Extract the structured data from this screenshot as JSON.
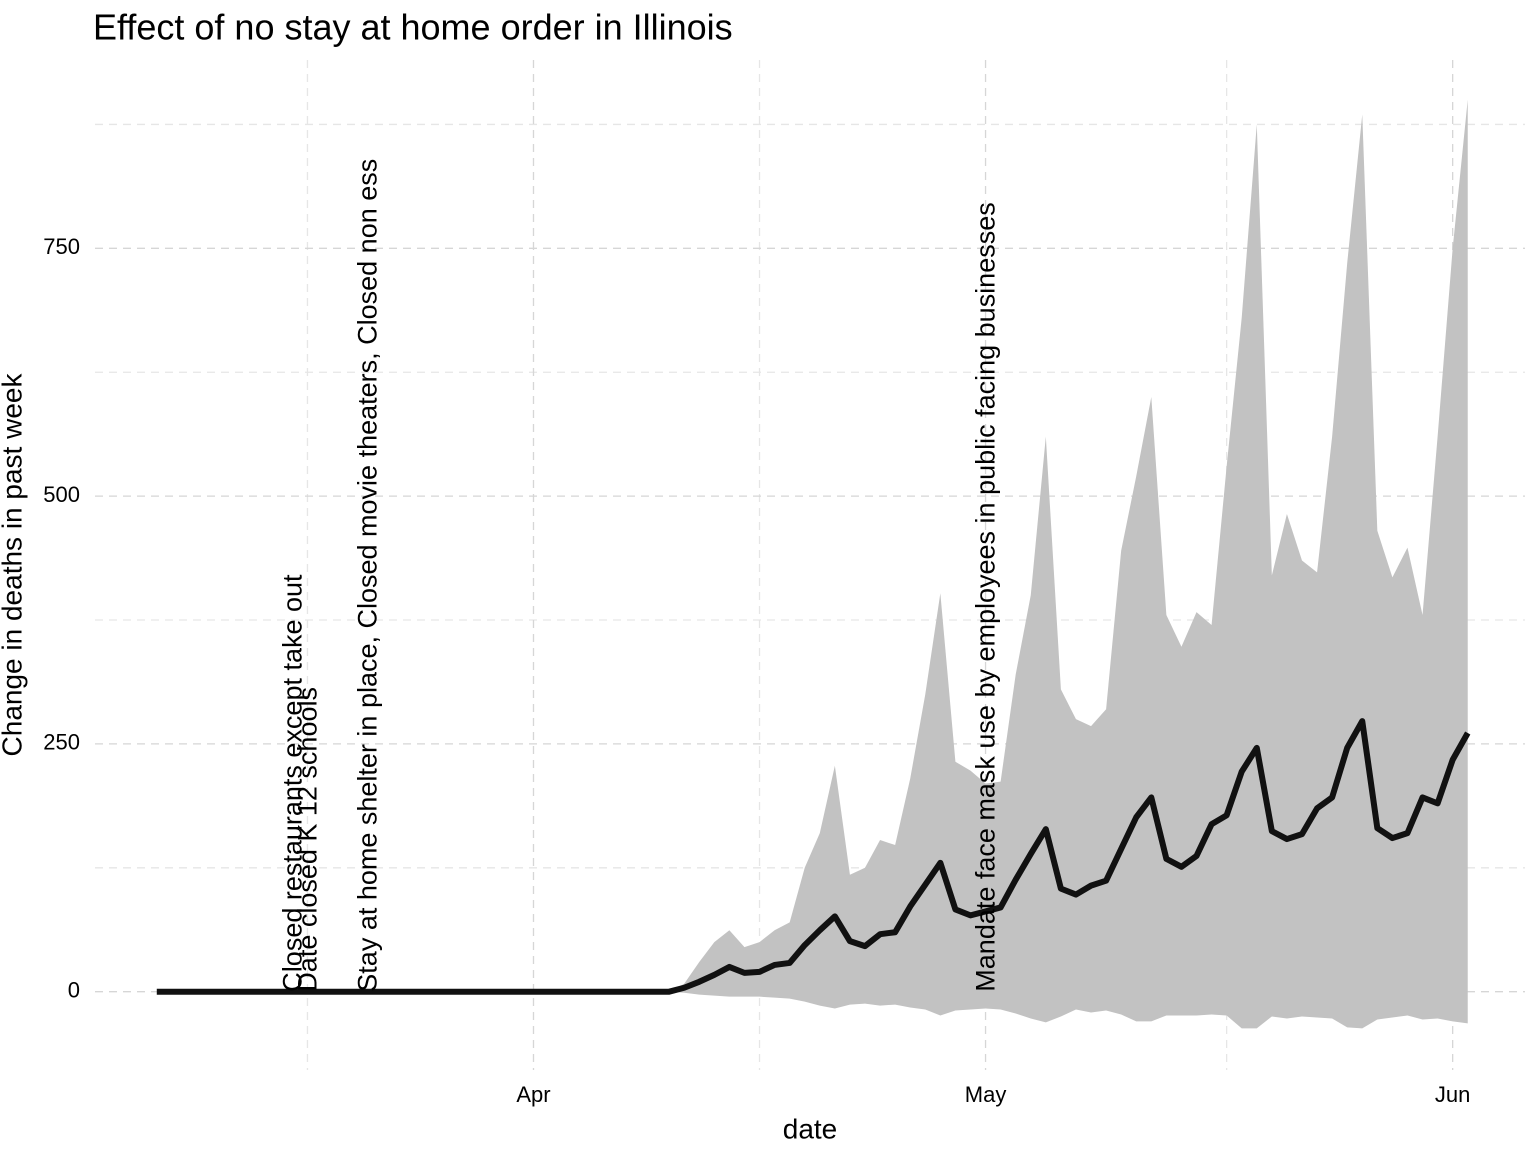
{
  "chart_data": {
    "type": "ribbon-line",
    "title": "Effect of no stay at home order in Illinois",
    "x_label": "date",
    "y_label": "Change in deaths in past week",
    "x": [
      -25,
      -24,
      -23,
      -22,
      -21,
      -20,
      -19,
      -18,
      -17,
      -16,
      -15,
      -14,
      -13,
      -12,
      -11,
      -10,
      -9,
      -8,
      -7,
      -6,
      -5,
      -4,
      -3,
      -2,
      -1,
      0,
      1,
      2,
      3,
      4,
      5,
      6,
      7,
      8,
      9,
      10,
      11,
      12,
      13,
      14,
      15,
      16,
      17,
      18,
      19,
      20,
      21,
      22,
      23,
      24,
      25,
      26,
      27,
      28,
      29,
      30,
      31,
      32,
      33,
      34,
      35,
      36,
      37,
      38,
      39,
      40,
      41,
      42,
      43,
      44,
      45,
      46,
      47,
      48,
      49,
      50,
      51,
      52,
      53,
      54,
      55,
      56,
      57,
      58,
      59,
      60,
      61,
      62
    ],
    "values": [
      0,
      0,
      0,
      0,
      0,
      0,
      0,
      0,
      0,
      0,
      0,
      0,
      0,
      0,
      0,
      0,
      0,
      0,
      0,
      0,
      0,
      0,
      0,
      0,
      0,
      0,
      0,
      0,
      0,
      0,
      0,
      0,
      0,
      0,
      0,
      4,
      10,
      17,
      25,
      19,
      20,
      27,
      29,
      47,
      62,
      76,
      51,
      46,
      58,
      60,
      86,
      108,
      130,
      83,
      77,
      81,
      85,
      113,
      139,
      164,
      104,
      98,
      107,
      112,
      144,
      176,
      196,
      134,
      126,
      137,
      169,
      178,
      222,
      246,
      162,
      154,
      159,
      185,
      196,
      246,
      273,
      165,
      155,
      160,
      196,
      190,
      234,
      261
    ],
    "upper": [
      0,
      0,
      0,
      0,
      0,
      0,
      0,
      0,
      0,
      0,
      0,
      0,
      0,
      0,
      0,
      0,
      0,
      0,
      0,
      0,
      0,
      0,
      0,
      0,
      0,
      0,
      0,
      0,
      0,
      0,
      0,
      0,
      0,
      0,
      0,
      8,
      30,
      50,
      62,
      45,
      50,
      62,
      70,
      125,
      160,
      228,
      118,
      125,
      153,
      148,
      215,
      300,
      402,
      232,
      223,
      210,
      212,
      320,
      400,
      560,
      305,
      275,
      268,
      285,
      445,
      520,
      600,
      380,
      348,
      383,
      370,
      530,
      680,
      875,
      420,
      482,
      435,
      423,
      560,
      735,
      885,
      465,
      418,
      448,
      380,
      560,
      750,
      900
    ],
    "lower": [
      0,
      0,
      0,
      0,
      0,
      0,
      0,
      0,
      0,
      0,
      0,
      0,
      0,
      0,
      0,
      0,
      0,
      0,
      0,
      0,
      0,
      0,
      0,
      0,
      0,
      0,
      0,
      0,
      0,
      0,
      0,
      0,
      0,
      0,
      0,
      -1,
      -3,
      -4,
      -5,
      -5,
      -5,
      -6,
      -7,
      -10,
      -14,
      -17,
      -13,
      -12,
      -14,
      -13,
      -16,
      -18,
      -24,
      -19,
      -18,
      -17,
      -18,
      -22,
      -27,
      -31,
      -25,
      -18,
      -21,
      -19,
      -23,
      -30,
      -30,
      -24,
      -24,
      -24,
      -23,
      -24,
      -37,
      -37,
      -25,
      -27,
      -25,
      -26,
      -27,
      -36,
      -37,
      -28,
      -26,
      -24,
      -28,
      -27,
      -30,
      -32
    ],
    "color": "#111111",
    "band_color": "#c2c2c2",
    "xlim": [
      -29.1,
      65.8
    ],
    "ylim": [
      -79,
      940
    ],
    "xticks": [
      {
        "value": 0,
        "label": "Apr"
      },
      {
        "value": 30,
        "label": "May"
      },
      {
        "value": 61,
        "label": "Jun"
      }
    ],
    "x_minor_grid": [
      -15,
      15,
      46
    ],
    "yticks": [
      0,
      250,
      500,
      750
    ],
    "y_minor_grid": [
      125,
      375,
      625,
      875
    ],
    "grid": true,
    "annotations": [
      {
        "x": -16,
        "text": "Closed restaurants except take out"
      },
      {
        "x": -15,
        "text": "Date closed K 12 schools"
      },
      {
        "x": -11,
        "text": "Stay at home  shelter in place, Closed movie theaters, Closed non ess"
      },
      {
        "x": 30,
        "text": "Mandate face mask use by employees in public facing businesses"
      }
    ]
  }
}
